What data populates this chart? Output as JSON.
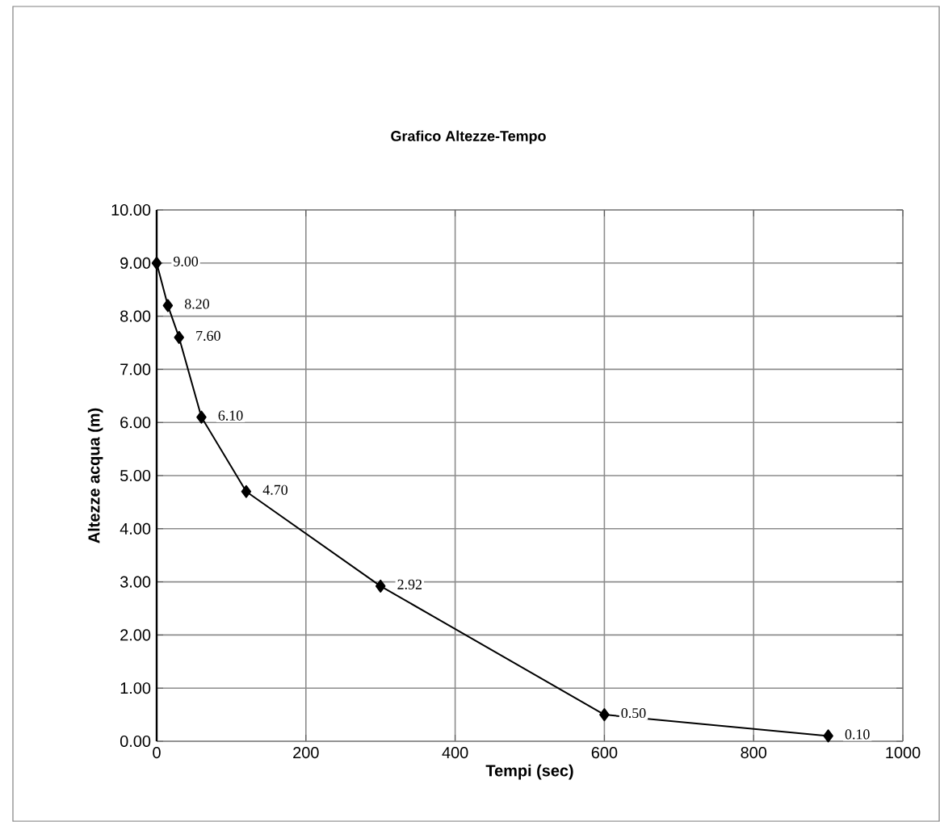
{
  "chart_data": {
    "type": "line",
    "title": "Grafico Altezze-Tempo",
    "xlabel": "Tempi (sec)",
    "ylabel": "Altezze acqua (m)",
    "x": [
      0,
      15,
      30,
      60,
      120,
      300,
      600,
      900
    ],
    "values": [
      9,
      8.2,
      7.6,
      6.1,
      4.7,
      2.92,
      0.5,
      0.1
    ],
    "value_labels": [
      "9.00",
      "8.20",
      "7.60",
      "6.10",
      "4.70",
      "2.92",
      "0.50",
      "0.10"
    ],
    "color": "#000000",
    "marker": "diamond",
    "line_style": "solid",
    "grid": true,
    "xlim": [
      0,
      1000
    ],
    "xticks": [
      0,
      200,
      400,
      600,
      800,
      1000
    ],
    "ylim": [
      0,
      10
    ],
    "yticks": [
      {
        "value": 0,
        "label": "0.00"
      },
      {
        "value": 1,
        "label": "1.00"
      },
      {
        "value": 2,
        "label": "2.00"
      },
      {
        "value": 3,
        "label": "3.00"
      },
      {
        "value": 4,
        "label": "4.00"
      },
      {
        "value": 5,
        "label": "5.00"
      },
      {
        "value": 6,
        "label": "6.00"
      },
      {
        "value": 7,
        "label": "7.00"
      },
      {
        "value": 8,
        "label": "8.00"
      },
      {
        "value": 9,
        "label": "9.00"
      },
      {
        "value": 10,
        "label": "10.00"
      }
    ]
  }
}
